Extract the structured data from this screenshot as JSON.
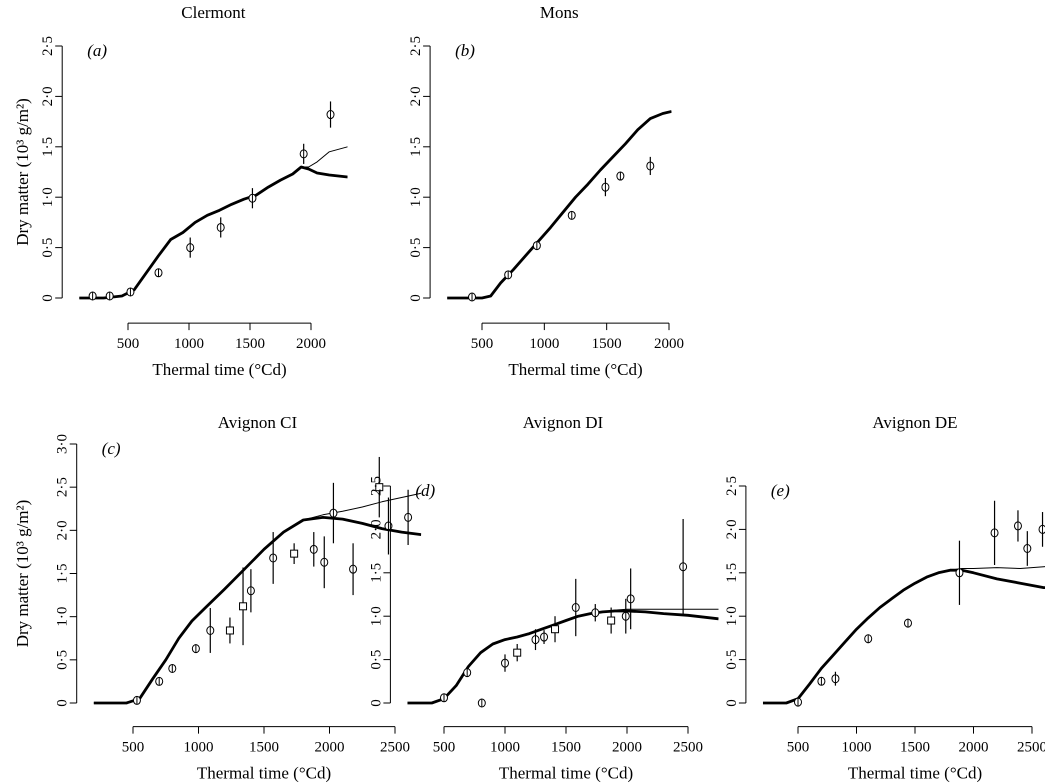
{
  "figure": {
    "ylabel": "Dry matter (10³ g/m²)",
    "xlabel": "Thermal time (°Cd)"
  },
  "chart_data": [
    {
      "type": "line",
      "panel": "(a)",
      "title": "Clermont",
      "xlabel": "Thermal time (°Cd)",
      "ylabel": "Dry matter (10³ g/m²)",
      "xlim": [
        100,
        2300
      ],
      "ylim": [
        -0.1,
        2.5
      ],
      "xticks": [
        500,
        1000,
        1500,
        2000
      ],
      "xtick_labels": [
        "500",
        "1000",
        "1500",
        "2000"
      ],
      "yticks": [
        0,
        0.5,
        1.0,
        1.5,
        2.0,
        2.5
      ],
      "ytick_labels": [
        "0",
        "0·5",
        "1·0",
        "1·5",
        "2·0",
        "2·5"
      ],
      "series": [
        {
          "style": "thin",
          "x": [
            100,
            300,
            450,
            550,
            650,
            750,
            850,
            950,
            1050,
            1150,
            1250,
            1350,
            1450,
            1550,
            1650,
            1750,
            1850,
            1920,
            1980,
            2050,
            2150,
            2300
          ],
          "y": [
            0,
            0,
            0.02,
            0.08,
            0.25,
            0.42,
            0.58,
            0.65,
            0.75,
            0.82,
            0.87,
            0.93,
            0.98,
            1.02,
            1.1,
            1.17,
            1.23,
            1.3,
            1.3,
            1.35,
            1.45,
            1.5
          ]
        },
        {
          "style": "thick",
          "x": [
            100,
            300,
            450,
            550,
            650,
            750,
            850,
            950,
            1050,
            1150,
            1250,
            1350,
            1450,
            1550,
            1650,
            1750,
            1850,
            1920,
            1980,
            2050,
            2150,
            2300
          ],
          "y": [
            0,
            0,
            0.02,
            0.08,
            0.25,
            0.42,
            0.58,
            0.65,
            0.75,
            0.82,
            0.87,
            0.93,
            0.98,
            1.02,
            1.1,
            1.17,
            1.23,
            1.3,
            1.28,
            1.24,
            1.22,
            1.2
          ]
        },
        {
          "style": "observed",
          "marker": "circle",
          "x": [
            210,
            350,
            520,
            750,
            1010,
            1260,
            1520,
            1940,
            2160
          ],
          "y": [
            0.02,
            0.02,
            0.06,
            0.25,
            0.5,
            0.7,
            0.99,
            1.43,
            1.82
          ],
          "err": [
            0.02,
            0.02,
            0.02,
            0.04,
            0.1,
            0.1,
            0.1,
            0.1,
            0.13
          ]
        }
      ]
    },
    {
      "type": "line",
      "panel": "(b)",
      "title": "Mons",
      "xlabel": "Thermal time (°Cd)",
      "ylabel": "",
      "xlim": [
        220,
        2020
      ],
      "ylim": [
        -0.1,
        2.5
      ],
      "xticks": [
        500,
        1000,
        1500,
        2000
      ],
      "xtick_labels": [
        "500",
        "1000",
        "1500",
        "2000"
      ],
      "yticks": [
        0,
        0.5,
        1.0,
        1.5,
        2.0,
        2.5
      ],
      "ytick_labels": [
        "0",
        "0·5",
        "1·0",
        "1·5",
        "2·0",
        "2·5"
      ],
      "series": [
        {
          "style": "thick",
          "x": [
            220,
            400,
            500,
            570,
            650,
            750,
            850,
            950,
            1050,
            1150,
            1250,
            1350,
            1450,
            1550,
            1650,
            1750,
            1850,
            1950,
            2020
          ],
          "y": [
            0,
            0,
            0,
            0.02,
            0.15,
            0.28,
            0.42,
            0.56,
            0.7,
            0.85,
            1.0,
            1.13,
            1.27,
            1.4,
            1.53,
            1.67,
            1.78,
            1.83,
            1.85
          ]
        },
        {
          "style": "observed",
          "marker": "circle",
          "x": [
            420,
            710,
            940,
            1220,
            1490,
            1610,
            1850
          ],
          "y": [
            0.01,
            0.23,
            0.52,
            0.82,
            1.1,
            1.21,
            1.31
          ],
          "err": [
            0.02,
            0.03,
            0.03,
            0.03,
            0.09,
            0.04,
            0.09
          ]
        }
      ]
    },
    {
      "type": "line",
      "panel": "(c)",
      "title": "Avignon CI",
      "xlabel": "Thermal time (°Cd)",
      "ylabel": "Dry matter (10³ g/m²)",
      "xlim": [
        200,
        2700
      ],
      "ylim": [
        -0.1,
        3.0
      ],
      "xticks": [
        500,
        1000,
        1500,
        2000,
        2500
      ],
      "xtick_labels": [
        "500",
        "1000",
        "1500",
        "2000",
        "2500"
      ],
      "yticks": [
        0,
        0.5,
        1.0,
        1.5,
        2.0,
        2.5,
        3.0
      ],
      "ytick_labels": [
        "0",
        "0·5",
        "1·0",
        "1·5",
        "2·0",
        "2·5",
        "3·0"
      ],
      "series": [
        {
          "style": "thin",
          "x": [
            200,
            450,
            550,
            650,
            750,
            850,
            950,
            1050,
            1200,
            1350,
            1500,
            1650,
            1800,
            1950,
            2100,
            2250,
            2400,
            2550,
            2700
          ],
          "y": [
            0,
            0,
            0.05,
            0.28,
            0.5,
            0.75,
            0.95,
            1.1,
            1.32,
            1.55,
            1.78,
            1.98,
            2.12,
            2.18,
            2.22,
            2.27,
            2.33,
            2.38,
            2.43
          ]
        },
        {
          "style": "thick",
          "x": [
            200,
            450,
            550,
            650,
            750,
            850,
            950,
            1050,
            1200,
            1350,
            1500,
            1650,
            1800,
            1950,
            2100,
            2250,
            2400,
            2550,
            2700
          ],
          "y": [
            0,
            0,
            0.05,
            0.28,
            0.5,
            0.75,
            0.95,
            1.1,
            1.32,
            1.55,
            1.78,
            1.98,
            2.12,
            2.15,
            2.13,
            2.08,
            2.02,
            1.98,
            1.95
          ]
        },
        {
          "style": "observed",
          "marker": "circle",
          "x": [
            530,
            700,
            800,
            980,
            1090,
            1400,
            1570,
            1880,
            1960,
            2030,
            2180,
            2450,
            2600
          ],
          "y": [
            0.03,
            0.25,
            0.4,
            0.63,
            0.84,
            1.3,
            1.68,
            1.78,
            1.63,
            2.2,
            1.55,
            2.05,
            2.15
          ],
          "err": [
            0.03,
            0.04,
            0.04,
            0.05,
            0.26,
            0.25,
            0.3,
            0.2,
            0.3,
            0.35,
            0.3,
            0.33,
            0.32
          ]
        },
        {
          "style": "observed",
          "marker": "square",
          "x": [
            1240,
            1340,
            1730,
            2380
          ],
          "y": [
            0.84,
            1.12,
            1.73,
            2.5
          ],
          "err": [
            0.15,
            0.45,
            0.12,
            0.35
          ]
        }
      ]
    },
    {
      "type": "line",
      "panel": "(d)",
      "title": "Avignon DI",
      "xlabel": "Thermal time (°Cd)",
      "ylabel": "",
      "xlim": [
        200,
        2750
      ],
      "ylim": [
        -0.1,
        2.5
      ],
      "xticks": [
        500,
        1000,
        1500,
        2000,
        2500
      ],
      "xtick_labels": [
        "500",
        "1000",
        "1500",
        "2000",
        "2500"
      ],
      "yticks": [
        0,
        0.5,
        1.0,
        1.5,
        2.0,
        2.5
      ],
      "ytick_labels": [
        "0",
        "0·5",
        "1·0",
        "1·5",
        "2·0",
        "2·5"
      ],
      "series": [
        {
          "style": "thin",
          "x": [
            200,
            400,
            500,
            600,
            700,
            800,
            900,
            1000,
            1100,
            1200,
            1300,
            1400,
            1500,
            1600,
            1700,
            1800,
            1900,
            2000,
            2150,
            2300,
            2500,
            2750
          ],
          "y": [
            0,
            0,
            0.05,
            0.2,
            0.42,
            0.58,
            0.68,
            0.73,
            0.76,
            0.8,
            0.85,
            0.9,
            0.95,
            1.0,
            1.03,
            1.05,
            1.07,
            1.08,
            1.08,
            1.08,
            1.08,
            1.08
          ]
        },
        {
          "style": "thick",
          "x": [
            200,
            400,
            500,
            600,
            700,
            800,
            900,
            1000,
            1100,
            1200,
            1300,
            1400,
            1500,
            1600,
            1700,
            1800,
            1900,
            2000,
            2150,
            2300,
            2500,
            2750
          ],
          "y": [
            0,
            0,
            0.05,
            0.2,
            0.42,
            0.58,
            0.68,
            0.73,
            0.76,
            0.8,
            0.85,
            0.9,
            0.95,
            1.0,
            1.03,
            1.05,
            1.06,
            1.06,
            1.05,
            1.03,
            1.01,
            0.97
          ]
        },
        {
          "style": "observed",
          "marker": "circle",
          "x": [
            500,
            690,
            810,
            1000,
            1250,
            1320,
            1580,
            1740,
            1990,
            2030,
            2460
          ],
          "y": [
            0.06,
            0.35,
            0.0,
            0.46,
            0.73,
            0.76,
            1.1,
            1.04,
            1.0,
            1.2,
            1.57
          ],
          "err": [
            0.02,
            0.05,
            0.02,
            0.1,
            0.12,
            0.08,
            0.33,
            0.1,
            0.2,
            0.35,
            0.55
          ]
        },
        {
          "style": "observed",
          "marker": "square",
          "x": [
            1100,
            1410,
            1870
          ],
          "y": [
            0.58,
            0.85,
            0.95
          ],
          "err": [
            0.1,
            0.15,
            0.15
          ]
        }
      ]
    },
    {
      "type": "line",
      "panel": "(e)",
      "title": "Avignon DE",
      "xlabel": "Thermal time (°Cd)",
      "ylabel": "",
      "xlim": [
        200,
        2800
      ],
      "ylim": [
        -0.1,
        2.5
      ],
      "xticks": [
        500,
        1000,
        1500,
        2000,
        2500
      ],
      "xtick_labels": [
        "500",
        "1000",
        "1500",
        "2000",
        "2500"
      ],
      "yticks": [
        0,
        0.5,
        1.0,
        1.5,
        2.0,
        2.5
      ],
      "ytick_labels": [
        "0",
        "0·5",
        "1·0",
        "1·5",
        "2·0",
        "2·5"
      ],
      "series": [
        {
          "style": "thin",
          "x": [
            200,
            400,
            500,
            600,
            700,
            800,
            900,
            1000,
            1100,
            1200,
            1300,
            1400,
            1500,
            1600,
            1700,
            1800,
            1900,
            2000,
            2200,
            2400,
            2600,
            2800
          ],
          "y": [
            0,
            0,
            0.05,
            0.22,
            0.4,
            0.55,
            0.7,
            0.85,
            0.98,
            1.1,
            1.2,
            1.3,
            1.38,
            1.45,
            1.5,
            1.53,
            1.55,
            1.55,
            1.56,
            1.55,
            1.57,
            1.58
          ]
        },
        {
          "style": "thick",
          "x": [
            200,
            400,
            500,
            600,
            700,
            800,
            900,
            1000,
            1100,
            1200,
            1300,
            1400,
            1500,
            1600,
            1700,
            1800,
            1900,
            2000,
            2200,
            2400,
            2600,
            2800
          ],
          "y": [
            0,
            0,
            0.05,
            0.22,
            0.4,
            0.55,
            0.7,
            0.85,
            0.98,
            1.1,
            1.2,
            1.3,
            1.38,
            1.45,
            1.5,
            1.53,
            1.53,
            1.5,
            1.43,
            1.38,
            1.33,
            1.32
          ]
        },
        {
          "style": "observed",
          "marker": "circle",
          "x": [
            500,
            700,
            820,
            1100,
            1440,
            1880,
            2180,
            2380,
            2460,
            2590
          ],
          "y": [
            0.01,
            0.25,
            0.28,
            0.74,
            0.92,
            1.5,
            1.96,
            2.04,
            1.78,
            2.0
          ],
          "err": [
            0.02,
            0.03,
            0.08,
            0.05,
            0.05,
            0.37,
            0.37,
            0.18,
            0.2,
            0.2
          ]
        }
      ]
    }
  ]
}
